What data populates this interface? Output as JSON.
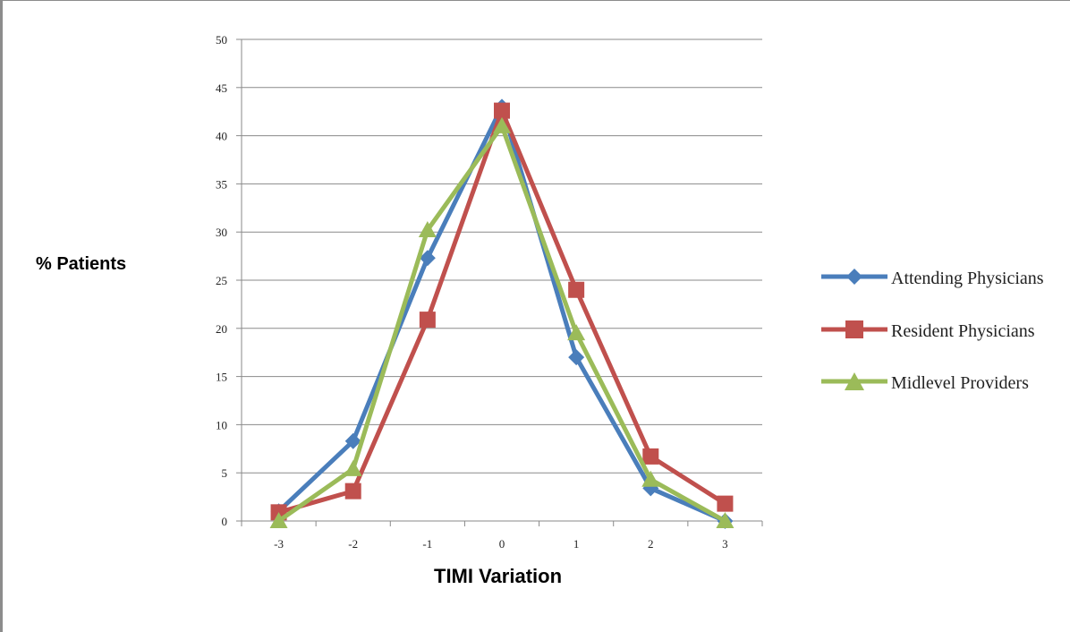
{
  "chart_data": {
    "type": "line",
    "title": "",
    "xlabel": "TIMI Variation",
    "ylabel": "% Patients",
    "categories": [
      "-3",
      "-2",
      "-1",
      "0",
      "1",
      "2",
      "3"
    ],
    "ylim": [
      0,
      50
    ],
    "yticks": [
      "0",
      "5",
      "10",
      "15",
      "20",
      "25",
      "30",
      "35",
      "40",
      "45",
      "50"
    ],
    "grid": "horizontal",
    "legend_position": "right",
    "series": [
      {
        "name": "Attending Physicians",
        "color": "#4a7ebb",
        "marker": "diamond",
        "values": [
          1.0,
          8.3,
          27.3,
          43.0,
          17.0,
          3.4,
          0.0
        ]
      },
      {
        "name": "Resident Physicians",
        "color": "#c0504d",
        "marker": "square",
        "values": [
          0.9,
          3.1,
          20.9,
          42.6,
          24.0,
          6.7,
          1.8
        ]
      },
      {
        "name": "Midlevel Providers",
        "color": "#9bbb59",
        "marker": "triangle",
        "values": [
          0.0,
          5.4,
          30.2,
          41.0,
          19.5,
          4.3,
          0.0
        ]
      }
    ]
  }
}
